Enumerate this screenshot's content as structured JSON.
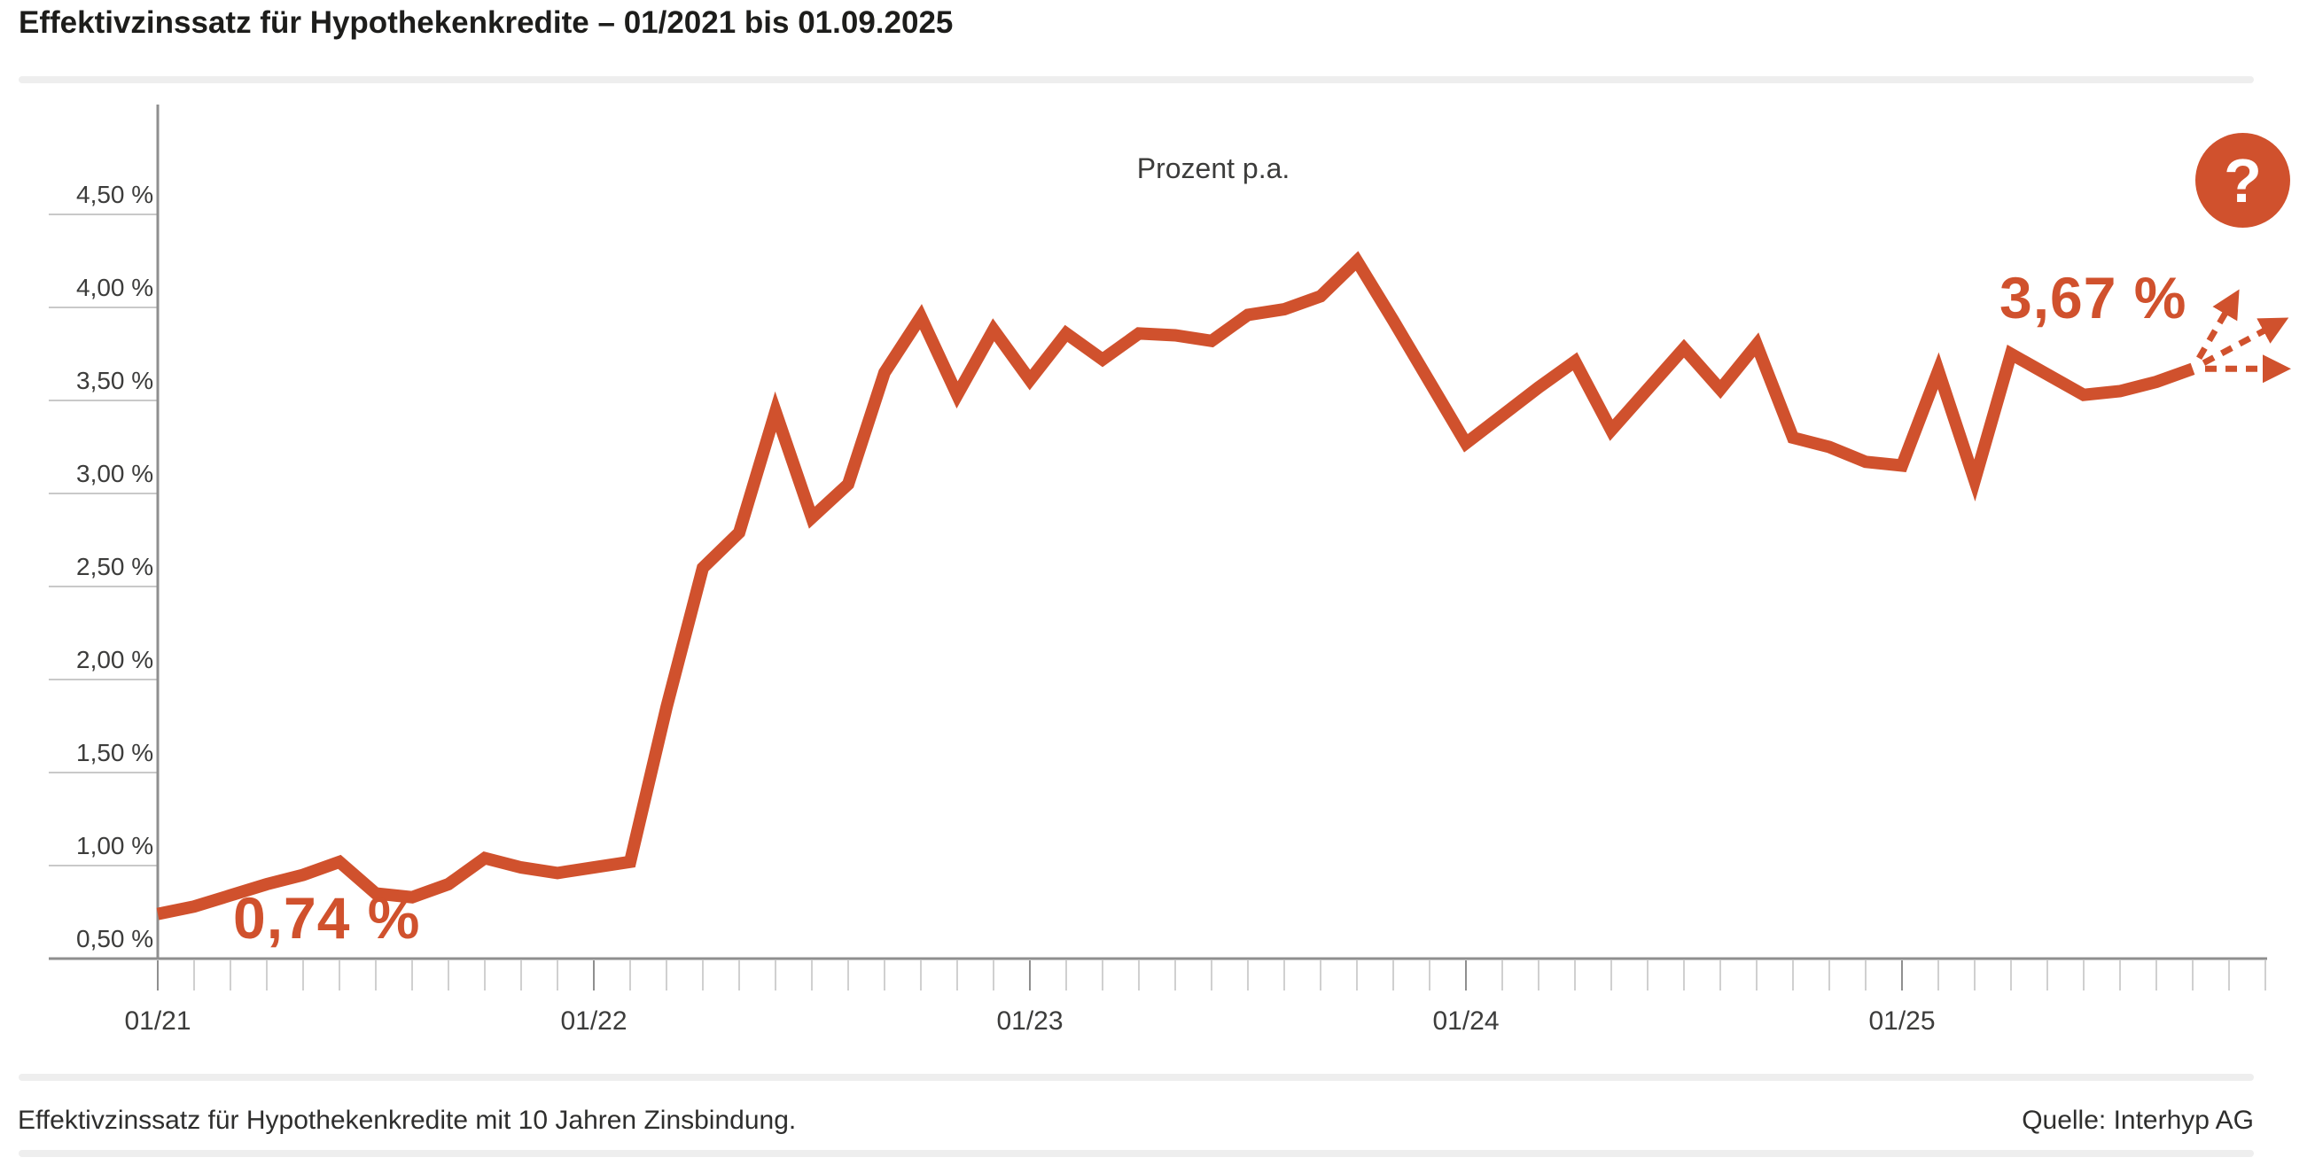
{
  "header": {
    "title": "Effektivzinssatz für Hypothekenkredite – 01/2021 bis 01.09.2025"
  },
  "chart_data": {
    "type": "line",
    "title": "Effektivzinssatz für Hypothekenkredite – 01/2021 bis 01.09.2025",
    "inner_title": "Prozent p.a.",
    "xlabel": "",
    "ylabel": "Prozent p.a.",
    "ylim": [
      0.5,
      5.0
    ],
    "grid": false,
    "legend_position": "none",
    "x": [
      "01/21",
      "02/21",
      "03/21",
      "04/21",
      "05/21",
      "06/21",
      "07/21",
      "08/21",
      "09/21",
      "10/21",
      "11/21",
      "12/21",
      "01/22",
      "02/22",
      "03/22",
      "04/22",
      "05/22",
      "06/22",
      "07/22",
      "08/22",
      "09/22",
      "10/22",
      "11/22",
      "12/22",
      "01/23",
      "02/23",
      "03/23",
      "04/23",
      "05/23",
      "06/23",
      "07/23",
      "08/23",
      "09/23",
      "10/23",
      "11/23",
      "12/23",
      "01/24",
      "02/24",
      "03/24",
      "04/24",
      "05/24",
      "06/24",
      "07/24",
      "08/24",
      "09/24",
      "10/24",
      "11/24",
      "12/24",
      "01/25",
      "02/25",
      "03/25",
      "04/25",
      "05/25",
      "06/25",
      "07/25",
      "08/25",
      "09/25"
    ],
    "series": [
      {
        "name": "Effektivzinssatz 10 Jahre Zinsbindung",
        "values": [
          0.74,
          0.78,
          0.84,
          0.9,
          0.95,
          1.02,
          0.85,
          0.83,
          0.9,
          1.04,
          0.99,
          0.96,
          0.99,
          1.02,
          1.85,
          2.6,
          2.79,
          3.44,
          2.87,
          3.05,
          3.65,
          3.95,
          3.53,
          3.88,
          3.61,
          3.86,
          3.72,
          3.86,
          3.85,
          3.82,
          3.96,
          3.99,
          4.06,
          4.25,
          3.93,
          3.6,
          3.27,
          3.42,
          3.57,
          3.71,
          3.34,
          3.56,
          3.78,
          3.56,
          3.8,
          3.3,
          3.25,
          3.17,
          3.15,
          3.66,
          3.07,
          3.75,
          3.64,
          3.53,
          3.55,
          3.6,
          3.67
        ]
      }
    ],
    "y_ticks": [
      {
        "value": 4.5,
        "label": "4,50 %"
      },
      {
        "value": 4.0,
        "label": "4,00 %"
      },
      {
        "value": 3.5,
        "label": "3,50 %"
      },
      {
        "value": 3.0,
        "label": "3,00 %"
      },
      {
        "value": 2.5,
        "label": "2,50 %"
      },
      {
        "value": 2.0,
        "label": "2,00 %"
      },
      {
        "value": 1.5,
        "label": "1,50 %"
      },
      {
        "value": 1.0,
        "label": "1,00 %"
      },
      {
        "value": 0.5,
        "label": "0,50 %"
      }
    ],
    "x_tick_labels": [
      {
        "month_index": 0,
        "label": "01/21"
      },
      {
        "month_index": 12,
        "label": "01/22"
      },
      {
        "month_index": 24,
        "label": "01/23"
      },
      {
        "month_index": 36,
        "label": "01/24"
      },
      {
        "month_index": 48,
        "label": "01/25"
      }
    ],
    "annotations": [
      {
        "id": "start",
        "text": "0,74 %",
        "refers_to": "01/2021"
      },
      {
        "id": "end",
        "text": "3,67 %",
        "refers_to": "01.09.2025"
      }
    ],
    "forecast_arrows": [
      "up",
      "slightly-up",
      "flat"
    ]
  },
  "help": {
    "label": "?"
  },
  "footer": {
    "note": "Effektivzinssatz für Hypothekenkredite mit 10 Jahren Zinsbindung.",
    "source": "Quelle: Interhyp AG"
  },
  "colors": {
    "accent": "#d0512d",
    "title_text": "#1d1d1b",
    "label_text": "#3c3c3b",
    "axis": "#8f8f8f",
    "tick_minor": "#d0d0d0",
    "grid": "#c9c9c9",
    "divider": "#eeeeee",
    "background": "#ffffff"
  }
}
